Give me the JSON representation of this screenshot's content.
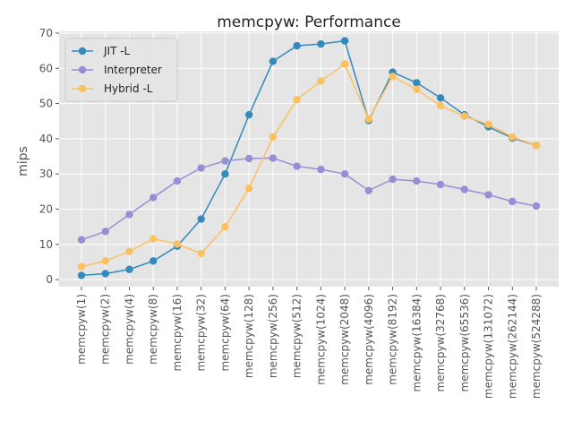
{
  "chart_data": {
    "type": "line",
    "title": "memcpyw: Performance",
    "xlabel": "",
    "ylabel": "mips",
    "ylim": [
      -2,
      70.5
    ],
    "yticks": [
      0,
      10,
      20,
      30,
      40,
      50,
      60,
      70
    ],
    "grid": true,
    "legend_position": "top-left",
    "categories": [
      "memcpyw(1)",
      "memcpyw(2)",
      "memcpyw(4)",
      "memcpyw(8)",
      "memcpyw(16)",
      "memcpyw(32)",
      "memcpyw(64)",
      "memcpyw(128)",
      "memcpyw(256)",
      "memcpyw(512)",
      "memcpyw(1024)",
      "memcpyw(2048)",
      "memcpyw(4096)",
      "memcpyw(8192)",
      "memcpyw(16384)",
      "memcpyw(32768)",
      "memcpyw(65536)",
      "memcpyw(131072)",
      "memcpyw(262144)",
      "memcpyw(524288)"
    ],
    "series": [
      {
        "name": "JIT -L",
        "color": "#348abd",
        "values": [
          1.2,
          1.7,
          2.9,
          5.3,
          9.5,
          17.2,
          30.0,
          46.8,
          62.0,
          66.4,
          66.9,
          67.8,
          45.2,
          58.9,
          55.9,
          51.6,
          46.8,
          43.4,
          40.2,
          38.1
        ]
      },
      {
        "name": "Interpreter",
        "color": "#988ed5",
        "values": [
          11.3,
          13.7,
          18.5,
          23.3,
          28.0,
          31.7,
          33.7,
          34.4,
          34.5,
          32.2,
          31.3,
          30.0,
          25.3,
          28.5,
          28.0,
          27.0,
          25.6,
          24.1,
          22.2,
          20.9
        ]
      },
      {
        "name": "Hybrid -L",
        "color": "#fbc15e",
        "values": [
          3.7,
          5.3,
          8.0,
          11.6,
          10.1,
          7.4,
          15.0,
          25.9,
          40.5,
          51.1,
          56.4,
          61.2,
          45.6,
          57.7,
          54.0,
          49.4,
          46.4,
          44.1,
          40.5,
          38.1
        ]
      }
    ]
  }
}
